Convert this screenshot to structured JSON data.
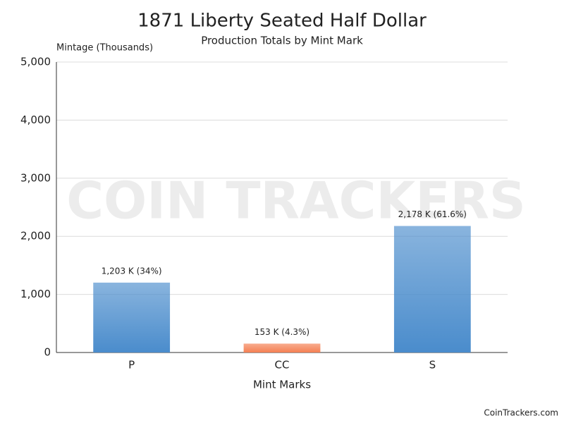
{
  "chart_data": {
    "type": "bar",
    "title": "1871 Liberty Seated Half Dollar",
    "subtitle": "Production Totals by Mint Mark",
    "y_axis_label": "Mintage (Thousands)",
    "x_axis_label": "Mint Marks",
    "watermark": "COIN TRACKERS",
    "credit": "CoinTrackers.com",
    "categories": [
      "P",
      "CC",
      "S"
    ],
    "values": [
      1203,
      153,
      2178
    ],
    "value_labels": [
      "1,203 K (34%)",
      "153 K (4.3%)",
      "2,178 K (61.6%)"
    ],
    "colors": [
      "#4a8ccc",
      "#f47f52",
      "#4a8ccc"
    ],
    "ylim": [
      0,
      5000
    ],
    "yticks": [
      0,
      {
        "value": 1000,
        "label": "1,000"
      },
      {
        "value": 2000,
        "label": "2,000"
      },
      {
        "value": 3000,
        "label": "3,000"
      },
      {
        "value": 4000,
        "label": "4,000"
      },
      {
        "value": 5000,
        "label": "5,000"
      }
    ],
    "grid": true
  }
}
